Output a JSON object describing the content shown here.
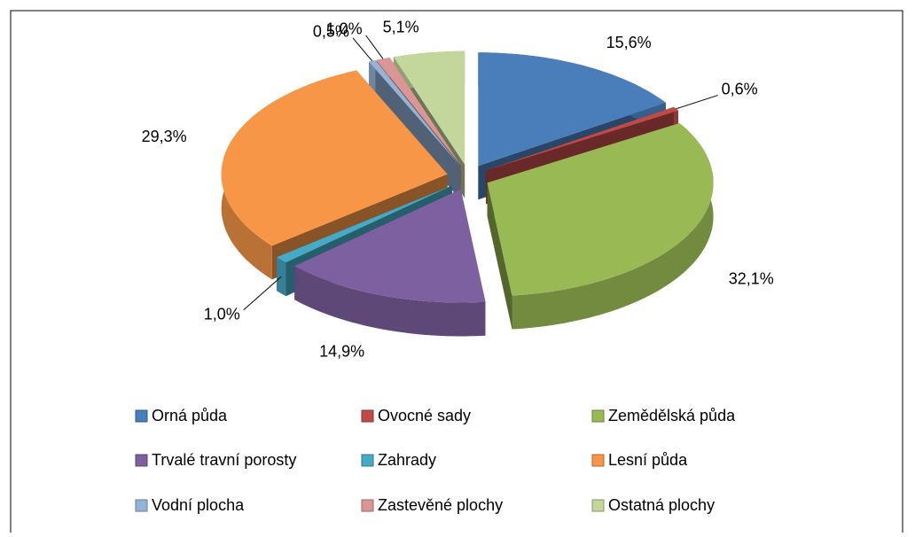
{
  "chart_data": {
    "type": "pie",
    "categories": [
      "Orná půda",
      "Ovocné sady",
      "Zemědělská půda",
      "Trvalé travní porosty",
      "Zahrady",
      "Lesní půda",
      "Vodní plocha",
      "Zastevěné plochy",
      "Ostatná plochy"
    ],
    "values": [
      15.6,
      0.6,
      32.1,
      14.9,
      1.0,
      29.3,
      0.5,
      1.0,
      5.1
    ],
    "value_labels": [
      "15,6%",
      "0,6%",
      "32,1%",
      "14,9%",
      "1,0%",
      "29,3%",
      "0,5%",
      "1,0%",
      "5,1%"
    ],
    "colors": [
      "#4a7ebb",
      "#be4b48",
      "#98b954",
      "#7d60a0",
      "#46aac5",
      "#f79646",
      "#95b3d7",
      "#d99694",
      "#c3d69b"
    ],
    "legend": "bottom"
  }
}
